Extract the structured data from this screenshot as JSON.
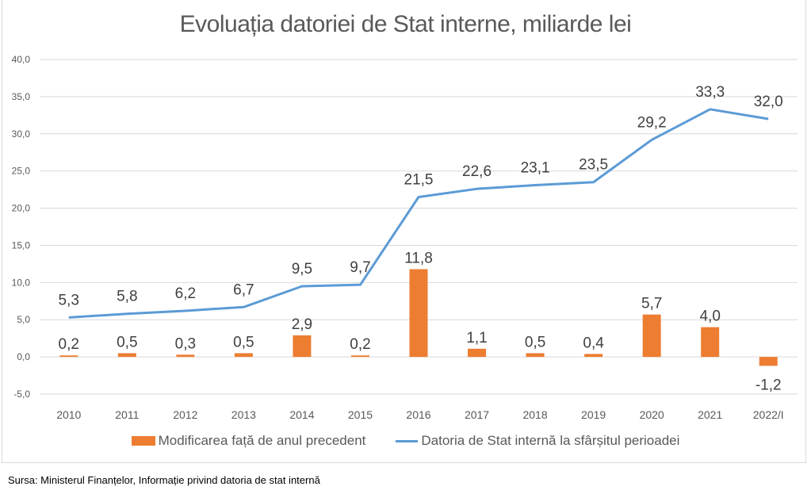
{
  "chart_data": {
    "type": "bar+line",
    "title": "Evoluația datoriei de Stat interne, miliarde lei",
    "xlabel": "",
    "ylabel": "",
    "ylim": [
      -5,
      40
    ],
    "ytick_step": 5,
    "yticks": [
      "-5,0",
      "0,0",
      "5,0",
      "10,0",
      "15,0",
      "20,0",
      "25,0",
      "30,0",
      "35,0",
      "40,0"
    ],
    "grid": true,
    "legend_position": "bottom",
    "categories": [
      "2010",
      "2011",
      "2012",
      "2013",
      "2014",
      "2015",
      "2016",
      "2017",
      "2018",
      "2019",
      "2020",
      "2021",
      "2022/I"
    ],
    "series": [
      {
        "name": "Modificarea față de anul precedent",
        "type": "bar",
        "color": "#ed7d31",
        "values": [
          0.2,
          0.5,
          0.3,
          0.5,
          2.9,
          0.2,
          11.8,
          1.1,
          0.5,
          0.4,
          5.7,
          4.0,
          -1.2
        ],
        "labels": [
          "0,2",
          "0,5",
          "0,3",
          "0,5",
          "2,9",
          "0,2",
          "11,8",
          "1,1",
          "0,5",
          "0,4",
          "5,7",
          "4,0",
          "-1,2"
        ]
      },
      {
        "name": "Datoria de Stat internă la sfârșitul perioadei",
        "type": "line",
        "color": "#5b9bd5",
        "values": [
          5.3,
          5.8,
          6.2,
          6.7,
          9.5,
          9.7,
          21.5,
          22.6,
          23.1,
          23.5,
          29.2,
          33.3,
          32.0
        ],
        "labels": [
          "5,3",
          "5,8",
          "6,2",
          "6,7",
          "9,5",
          "9,7",
          "21,5",
          "22,6",
          "23,1",
          "23,5",
          "29,2",
          "33,3",
          "32,0"
        ]
      }
    ]
  },
  "legend": {
    "bar_label": "Modificarea față de anul precedent",
    "line_label": "Datoria de Stat internă la sfârșitul perioadei"
  },
  "source": "Sursa: Ministerul Finanțelor, Informație privind datoria de stat internă"
}
